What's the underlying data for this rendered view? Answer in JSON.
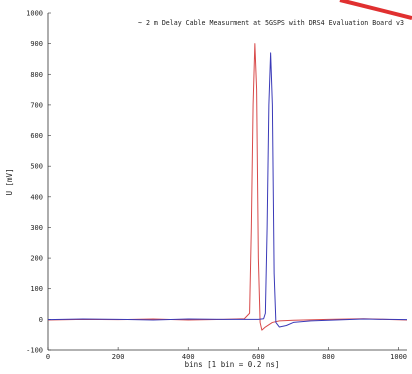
{
  "chart_data": {
    "type": "line",
    "title": "~ 2 m Delay Cable Measurment at 5GSPS with DRS4 Evaluation Board v3",
    "xlabel": "bins [1 bin = 0.2 ns]",
    "ylabel": "U [mV]",
    "xlim": [
      0,
      1024
    ],
    "ylim": [
      -100,
      1000
    ],
    "xticks": [
      0,
      200,
      400,
      600,
      800,
      1000
    ],
    "yticks": [
      -100,
      0,
      100,
      200,
      300,
      400,
      500,
      600,
      700,
      800,
      900,
      1000
    ],
    "grid": false,
    "legend": "none",
    "series": [
      {
        "color": "#d84a4a",
        "x": [
          0,
          100,
          200,
          300,
          400,
          500,
          560,
          575,
          580,
          585,
          590,
          595,
          600,
          605,
          610,
          620,
          640,
          660,
          700,
          800,
          900,
          1024
        ],
        "y": [
          -2,
          0,
          -1,
          1,
          -2,
          0,
          2,
          20,
          300,
          700,
          900,
          750,
          200,
          -10,
          -35,
          -25,
          -10,
          -5,
          -3,
          0,
          2,
          -2
        ]
      },
      {
        "color": "#3a3ab8",
        "x": [
          0,
          100,
          200,
          300,
          400,
          500,
          600,
          615,
          620,
          625,
          630,
          635,
          640,
          645,
          650,
          660,
          680,
          700,
          750,
          800,
          900,
          1024
        ],
        "y": [
          -1,
          1,
          0,
          -2,
          1,
          0,
          0,
          2,
          20,
          300,
          700,
          870,
          700,
          150,
          -10,
          -25,
          -20,
          -10,
          -5,
          -3,
          1,
          -1
        ]
      }
    ]
  },
  "corner_mark": {
    "color": "#e03030"
  }
}
